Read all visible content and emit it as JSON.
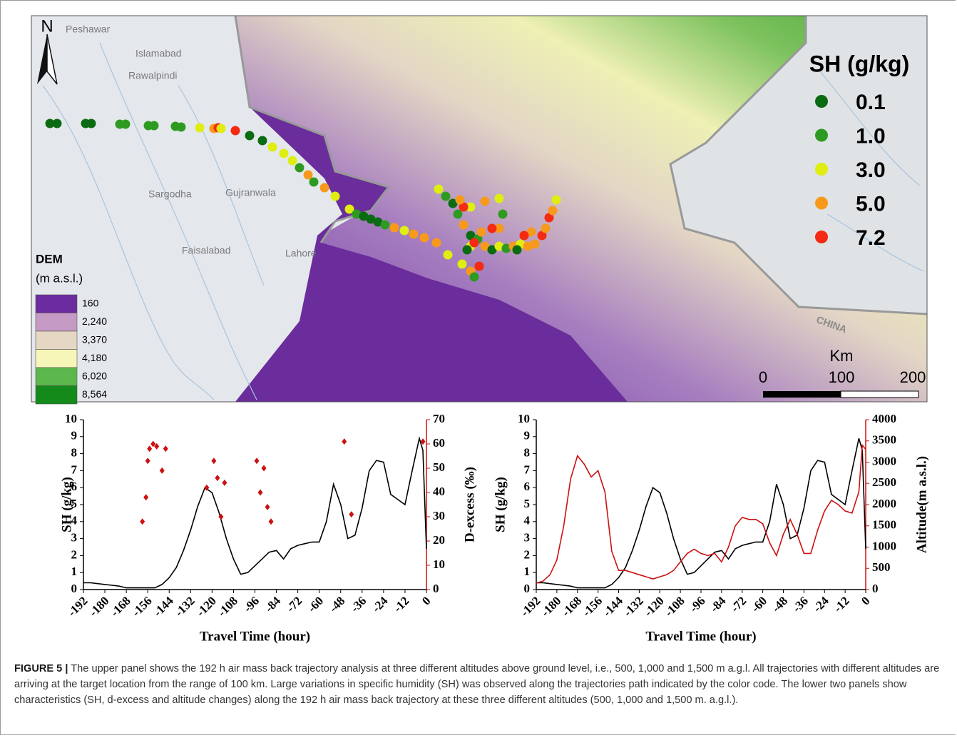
{
  "map": {
    "north": "N",
    "cities": [
      "Peshawar",
      "Islamabad",
      "Rawalpindi",
      "Sargodha",
      "Gujranwala",
      "Faisalabad",
      "Lahore"
    ],
    "country_label": "CHINA",
    "sh_legend": {
      "title": "SH (g/kg)",
      "items": [
        {
          "label": "0.1",
          "color": "#0b6b12"
        },
        {
          "label": "1.0",
          "color": "#2e9a22"
        },
        {
          "label": "3.0",
          "color": "#dfee10"
        },
        {
          "label": "5.0",
          "color": "#f79a1b"
        },
        {
          "label": "7.2",
          "color": "#f52a12"
        }
      ]
    },
    "dem_legend": {
      "title": "DEM",
      "unit": "(m a.s.l.)",
      "items": [
        {
          "label": "160",
          "color": "#6a2c9e"
        },
        {
          "label": "2,240",
          "color": "#c59ac4"
        },
        {
          "label": "3,370",
          "color": "#e6d7c4"
        },
        {
          "label": "4,180",
          "color": "#f6f6b8"
        },
        {
          "label": "6,020",
          "color": "#5cb84c"
        },
        {
          "label": "8,564",
          "color": "#138a1a"
        }
      ]
    },
    "scale": {
      "unit": "Km",
      "labels": [
        "0",
        "100",
        "200"
      ]
    }
  },
  "chart_data": [
    {
      "type": "line",
      "xlabel": "Travel Time (hour)",
      "ylabel": "SH (g/kg)",
      "y2label": "D-excess (‰)",
      "xlim": [
        -192,
        0
      ],
      "xticks": [
        -192,
        -180,
        -168,
        -156,
        -144,
        -132,
        -120,
        -108,
        -96,
        -84,
        -72,
        -60,
        -48,
        -36,
        -24,
        -12,
        0
      ],
      "ylim": [
        0,
        10
      ],
      "yticks": [
        0,
        1,
        2,
        3,
        4,
        5,
        6,
        7,
        8,
        9,
        10
      ],
      "y2lim": [
        0,
        70
      ],
      "y2ticks": [
        0,
        10,
        20,
        30,
        40,
        50,
        60,
        70
      ],
      "series": [
        {
          "type": "line",
          "color": "#000000",
          "x": [
            -192,
            -188,
            -184,
            -180,
            -176,
            -172,
            -168,
            -164,
            -160,
            -156,
            -152,
            -148,
            -144,
            -140,
            -136,
            -132,
            -128,
            -124,
            -120,
            -116,
            -112,
            -108,
            -104,
            -100,
            -96,
            -92,
            -88,
            -84,
            -80,
            -76,
            -72,
            -68,
            -64,
            -60,
            -56,
            -52,
            -48,
            -44,
            -40,
            -36,
            -32,
            -28,
            -24,
            -20,
            -16,
            -12,
            -8,
            -4,
            -2,
            0
          ],
          "values": [
            0.4,
            0.4,
            0.35,
            0.3,
            0.25,
            0.2,
            0.1,
            0.1,
            0.1,
            0.1,
            0.1,
            0.3,
            0.7,
            1.3,
            2.3,
            3.5,
            4.9,
            6.0,
            5.7,
            4.5,
            3.0,
            1.8,
            0.9,
            1.0,
            1.4,
            1.8,
            2.2,
            2.3,
            1.8,
            2.4,
            2.6,
            2.7,
            2.8,
            2.8,
            4.0,
            6.2,
            5.0,
            3.0,
            3.2,
            4.8,
            7.0,
            7.6,
            7.5,
            5.6,
            5.3,
            5.0,
            7.0,
            8.9,
            8.2,
            2.4
          ]
        },
        {
          "type": "scatter",
          "axis": "y2",
          "color": "#cc1111",
          "x": [
            -159,
            -157,
            -156,
            -155,
            -153,
            -151,
            -148,
            -146,
            -123,
            -119,
            -117,
            -115,
            -113,
            -95,
            -93,
            -91,
            -89,
            -87,
            -46,
            -42,
            -2
          ],
          "values": [
            28,
            38,
            53,
            58,
            60,
            59,
            49,
            58,
            42,
            53,
            46,
            30,
            44,
            53,
            40,
            50,
            34,
            28,
            61,
            31,
            61
          ]
        }
      ]
    },
    {
      "type": "line",
      "xlabel": "Travel Time (hour)",
      "ylabel": "SH (g/kg)",
      "y2label": "Altitude(m a.s.l.)",
      "xlim": [
        -192,
        0
      ],
      "xticks": [
        -192,
        -180,
        -168,
        -156,
        -144,
        -132,
        -120,
        -108,
        -96,
        -84,
        -72,
        -60,
        -48,
        -36,
        -24,
        -12,
        0
      ],
      "ylim": [
        0,
        10
      ],
      "yticks": [
        0,
        1,
        2,
        3,
        4,
        5,
        6,
        7,
        8,
        9,
        10
      ],
      "y2lim": [
        0,
        4000
      ],
      "y2ticks": [
        0,
        500,
        1000,
        1500,
        2000,
        2500,
        3000,
        3500,
        4000
      ],
      "series": [
        {
          "type": "line",
          "color": "#000000",
          "x": [
            -192,
            -188,
            -184,
            -180,
            -176,
            -172,
            -168,
            -164,
            -160,
            -156,
            -152,
            -148,
            -144,
            -140,
            -136,
            -132,
            -128,
            -124,
            -120,
            -116,
            -112,
            -108,
            -104,
            -100,
            -96,
            -92,
            -88,
            -84,
            -80,
            -76,
            -72,
            -68,
            -64,
            -60,
            -56,
            -52,
            -48,
            -44,
            -40,
            -36,
            -32,
            -28,
            -24,
            -20,
            -16,
            -12,
            -8,
            -4,
            -2,
            0
          ],
          "values": [
            0.4,
            0.4,
            0.35,
            0.3,
            0.25,
            0.2,
            0.1,
            0.1,
            0.1,
            0.1,
            0.1,
            0.3,
            0.7,
            1.3,
            2.3,
            3.5,
            4.9,
            6.0,
            5.7,
            4.5,
            3.0,
            1.8,
            0.9,
            1.0,
            1.4,
            1.8,
            2.2,
            2.3,
            1.8,
            2.4,
            2.6,
            2.7,
            2.8,
            2.8,
            4.0,
            6.2,
            5.0,
            3.0,
            3.2,
            4.8,
            7.0,
            7.6,
            7.5,
            5.6,
            5.3,
            5.0,
            7.0,
            8.9,
            8.2,
            2.4
          ]
        },
        {
          "type": "line",
          "axis": "y2",
          "color": "#cc1111",
          "x": [
            -192,
            -188,
            -184,
            -180,
            -176,
            -172,
            -168,
            -164,
            -160,
            -156,
            -152,
            -148,
            -144,
            -140,
            -136,
            -132,
            -128,
            -124,
            -120,
            -116,
            -112,
            -108,
            -104,
            -100,
            -96,
            -92,
            -88,
            -84,
            -80,
            -76,
            -72,
            -68,
            -64,
            -60,
            -56,
            -52,
            -48,
            -44,
            -40,
            -36,
            -32,
            -28,
            -24,
            -20,
            -16,
            -12,
            -8,
            -4,
            -2,
            0
          ],
          "values": [
            150,
            200,
            350,
            700,
            1500,
            2600,
            3150,
            2950,
            2650,
            2800,
            2300,
            900,
            450,
            450,
            400,
            350,
            300,
            250,
            300,
            350,
            450,
            650,
            850,
            950,
            850,
            800,
            850,
            650,
            1000,
            1500,
            1700,
            1650,
            1650,
            1550,
            1100,
            800,
            1300,
            1650,
            1300,
            850,
            850,
            1400,
            1850,
            2100,
            2000,
            1850,
            1800,
            2300,
            3400,
            3300
          ]
        }
      ]
    }
  ],
  "caption": {
    "label": "FIGURE 5 |",
    "text": "The upper panel shows the 192 h air mass back trajectory analysis at three different altitudes above ground level, i.e., 500, 1,000 and 1,500 m a.g.l. All trajectories with different altitudes are arriving at the target location from the range of 100 km. Large variations in specific humidity (SH) was observed along the trajectories path indicated by the color code. The lower two panels show characteristics (SH, d-excess and altitude changes) along the 192 h air mass back trajectory at these three different altitudes (500, 1,000 and 1,500 m. a.g.l.)."
  }
}
